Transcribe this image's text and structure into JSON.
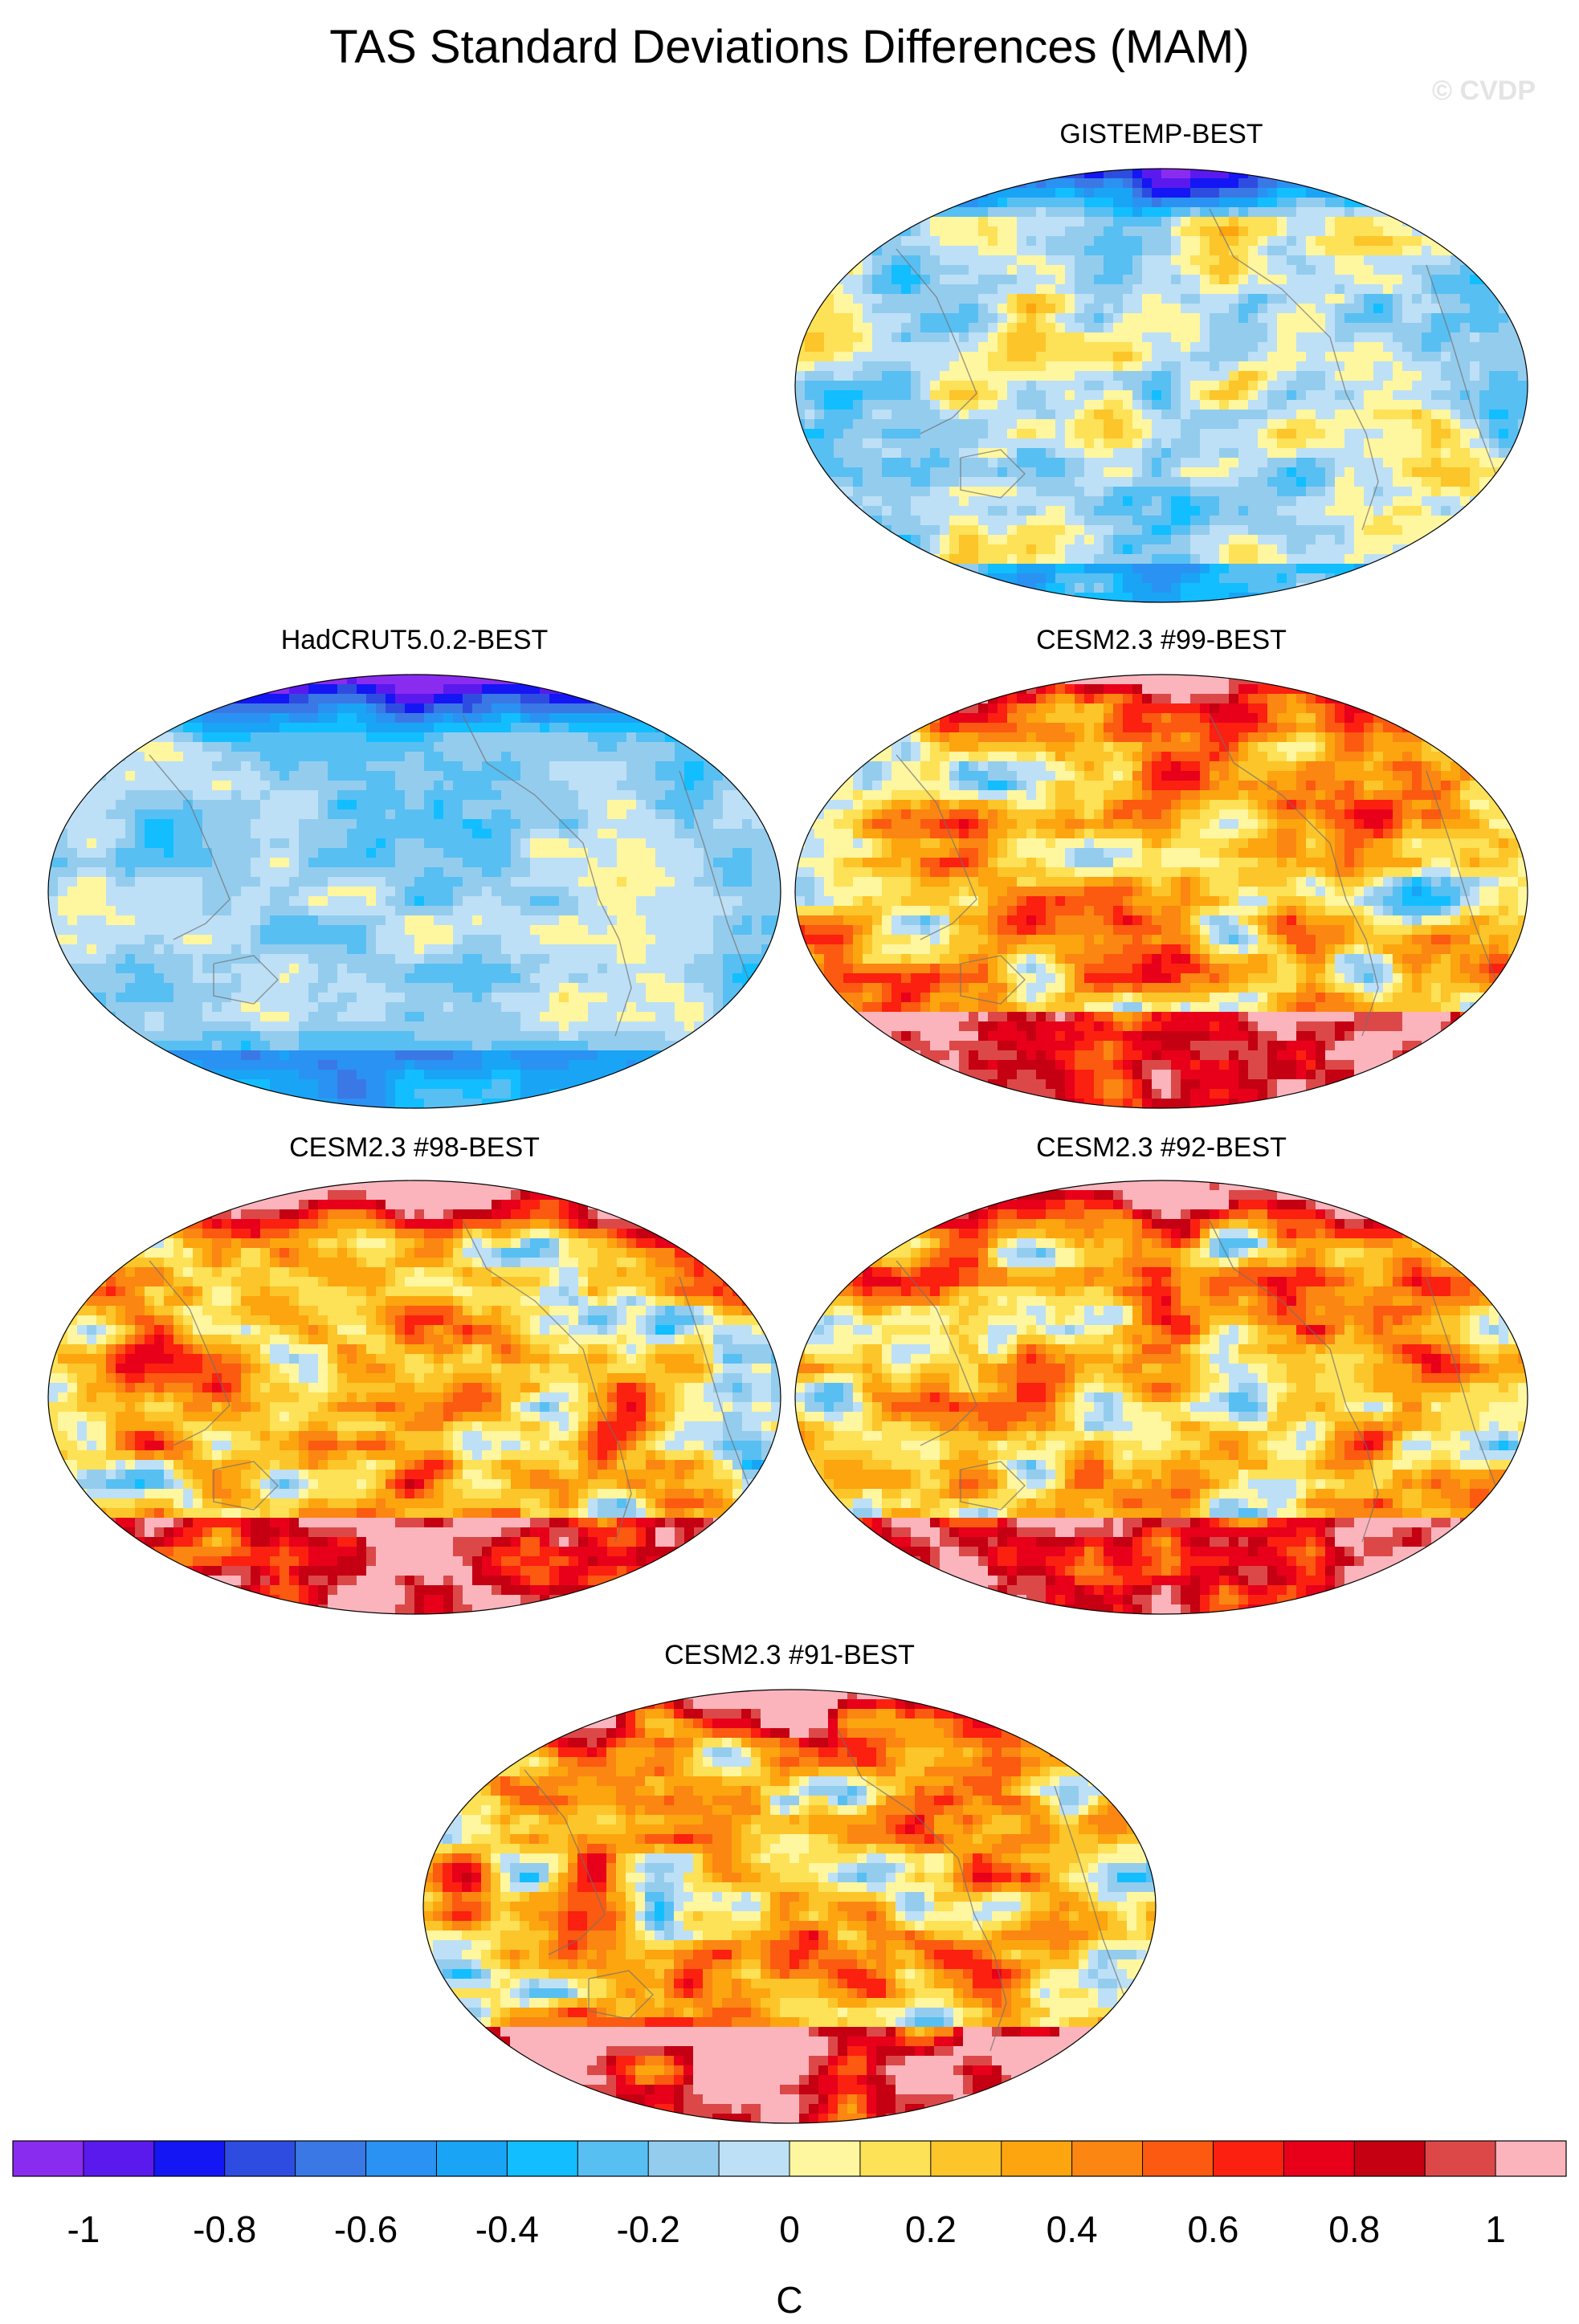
{
  "title": "TAS Standard Deviations Differences (MAM)",
  "watermark": "© CVDP",
  "panels": [
    {
      "label": "GISTEMP-BEST",
      "style": "cool"
    },
    {
      "label": "HadCRUT5.0.2-BEST",
      "style": "cool-strong"
    },
    {
      "label": "CESM2.3 #99-BEST",
      "style": "warm"
    },
    {
      "label": "CESM2.3 #98-BEST",
      "style": "warm"
    },
    {
      "label": "CESM2.3 #92-BEST",
      "style": "warm"
    },
    {
      "label": "CESM2.3 #91-BEST",
      "style": "warm"
    }
  ],
  "colorbar": {
    "unit": "C",
    "levels": [
      -1.1,
      -1,
      -0.9,
      -0.8,
      -0.7,
      -0.6,
      -0.5,
      -0.4,
      -0.3,
      -0.2,
      -0.1,
      0,
      0.1,
      0.2,
      0.3,
      0.4,
      0.5,
      0.6,
      0.7,
      0.8,
      0.9,
      1,
      1.1
    ],
    "tick_labels": [
      "-1",
      "-0.8",
      "-0.6",
      "-0.4",
      "-0.2",
      "0",
      "0.2",
      "0.4",
      "0.6",
      "0.8",
      "1"
    ],
    "colors": [
      "#8a2cf0",
      "#5a1aee",
      "#1416f4",
      "#2e4de0",
      "#3a78e6",
      "#2a92f2",
      "#1aa4f6",
      "#12beff",
      "#58bff2",
      "#94ccee",
      "#bde0f6",
      "#fff6a0",
      "#fde157",
      "#fcc52a",
      "#fca50e",
      "#fb8612",
      "#fb5a10",
      "#fb2010",
      "#e8001a",
      "#c40012",
      "#dc4848",
      "#fbb4bc"
    ]
  }
}
